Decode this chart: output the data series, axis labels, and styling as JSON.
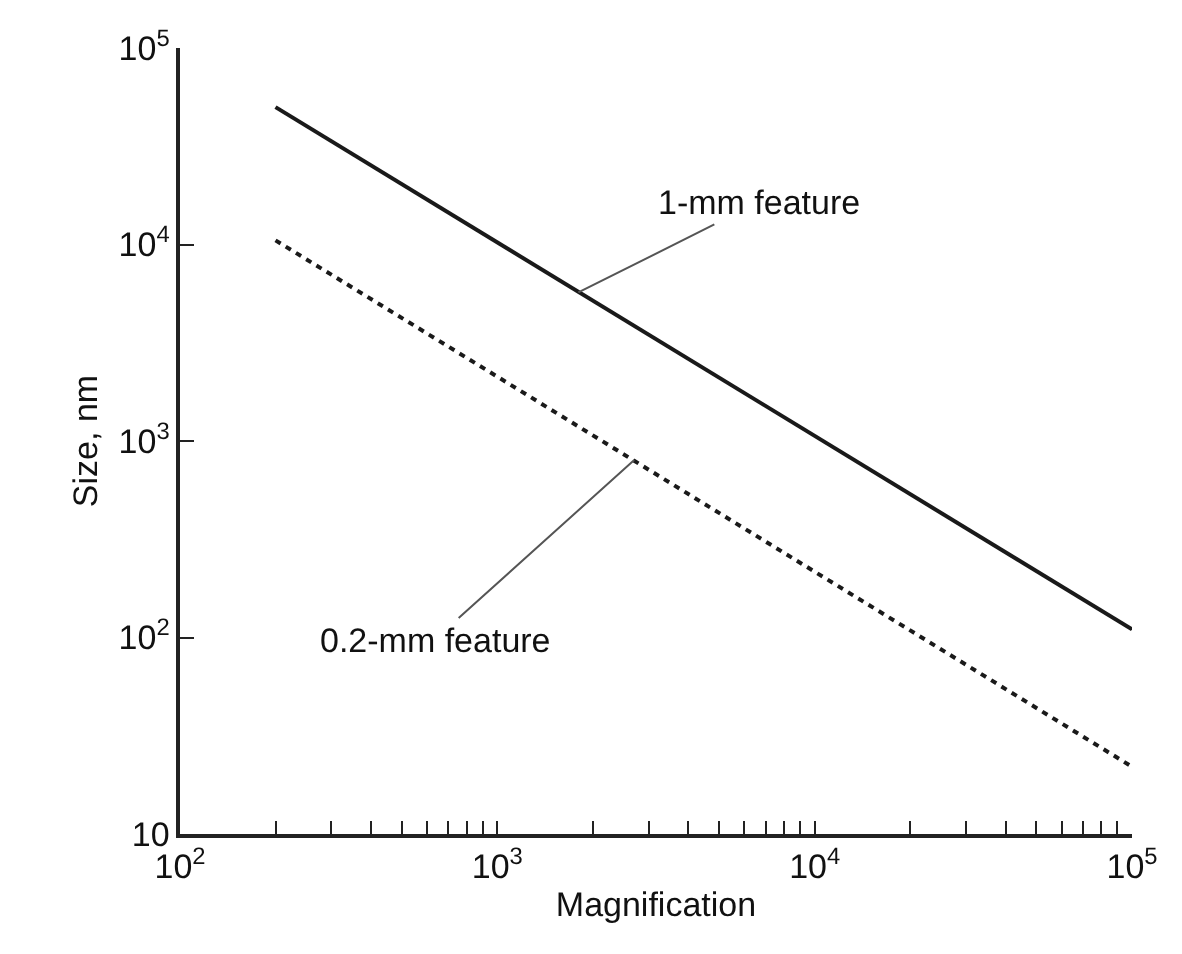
{
  "chart_data": {
    "type": "line",
    "xlabel": "Magnification",
    "ylabel": "Size, nm",
    "log": "xy",
    "legend": false,
    "series": [
      {
        "values": [
          50000,
          110
        ],
        "color": "#1a1a1a",
        "line_style": "solid"
      },
      {
        "values": [
          10500,
          22
        ],
        "color": "#1a1a1a",
        "line_style": "dotted"
      }
    ],
    "x": [
      200,
      100000
    ],
    "xlim": [
      100,
      100000
    ],
    "ylim": [
      10,
      100000
    ],
    "xticks": [
      {
        "value": 100,
        "label": "10$^{2}$"
      },
      {
        "value": 200,
        "label": null
      },
      {
        "value": 300,
        "label": null
      },
      {
        "value": 400,
        "label": null
      },
      {
        "value": 500,
        "label": null
      },
      {
        "value": 600,
        "label": null
      },
      {
        "value": 700,
        "label": null
      },
      {
        "value": 800,
        "label": null
      },
      {
        "value": 900,
        "label": null
      },
      {
        "value": 1000,
        "label": "10$^{3}$"
      },
      {
        "value": 2000,
        "label": null
      },
      {
        "value": 3000,
        "label": null
      },
      {
        "value": 4000,
        "label": null
      },
      {
        "value": 5000,
        "label": null
      },
      {
        "value": 6000,
        "label": null
      },
      {
        "value": 7000,
        "label": null
      },
      {
        "value": 8000,
        "label": null
      },
      {
        "value": 9000,
        "label": null
      },
      {
        "value": 10000,
        "label": "10$^{4}$"
      },
      {
        "value": 20000,
        "label": null
      },
      {
        "value": 30000,
        "label": null
      },
      {
        "value": 40000,
        "label": null
      },
      {
        "value": 50000,
        "label": null
      },
      {
        "value": 60000,
        "label": null
      },
      {
        "value": 70000,
        "label": null
      },
      {
        "value": 80000,
        "label": null
      },
      {
        "value": 90000,
        "label": null
      },
      {
        "value": 100000,
        "label": "10$^{5}$"
      }
    ],
    "yticks": [
      10,
      {
        "value": 100,
        "label": "10$^{2}$"
      },
      {
        "value": 1000,
        "label": "10$^{3}$"
      },
      {
        "value": 10000,
        "label": "10$^{4}$"
      },
      {
        "value": 100000,
        "label": "10$^{5}$"
      }
    ],
    "annotations": [
      {
        "text": "1-mm feature",
        "x": 1800,
        "y": 5700
      },
      {
        "text": "0.2-mm feature",
        "x": 2700,
        "y": 800
      }
    ]
  }
}
